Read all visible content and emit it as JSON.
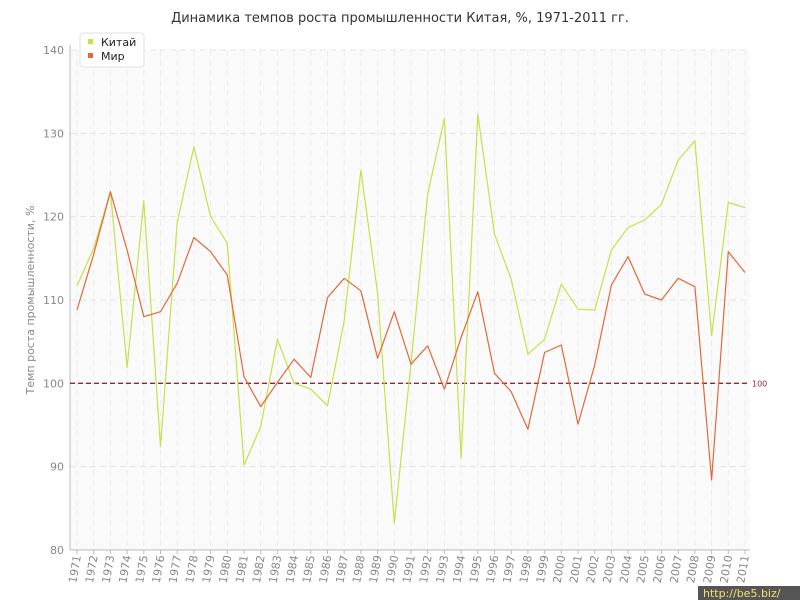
{
  "chart_data": {
    "type": "line",
    "title": "Динамика темпов роста промышленности Китая, %, 1971-2011 гг.",
    "xlabel": "",
    "ylabel": "Темп роста промышленности, %",
    "ylim": [
      80,
      140
    ],
    "yticks": [
      80,
      90,
      100,
      110,
      120,
      130,
      140
    ],
    "grid": true,
    "legend_position": "top-left",
    "x": [
      "1971",
      "1972",
      "1973",
      "1974",
      "1975",
      "1976",
      "1977",
      "1978",
      "1979",
      "1980",
      "1981",
      "1982",
      "1983",
      "1984",
      "1985",
      "1986",
      "1987",
      "1988",
      "1989",
      "1990",
      "1991",
      "1992",
      "1993",
      "1994",
      "1995",
      "1996",
      "1997",
      "1998",
      "1999",
      "2000",
      "2001",
      "2002",
      "2003",
      "2004",
      "2005",
      "2006",
      "2007",
      "2008",
      "2009",
      "2010",
      "2011"
    ],
    "series": [
      {
        "name": "Китай",
        "color": "#c8e04a",
        "values": [
          111.7,
          116.2,
          123.0,
          101.9,
          121.9,
          92.4,
          119.3,
          128.4,
          120.0,
          116.8,
          90.2,
          94.8,
          105.3,
          100.0,
          99.3,
          97.3,
          107.5,
          125.6,
          110.8,
          83.2,
          102.4,
          122.7,
          131.8,
          91.0,
          132.3,
          117.9,
          112.5,
          103.5,
          105.3,
          111.9,
          108.9,
          108.8,
          116.0,
          118.7,
          119.6,
          121.5,
          126.8,
          129.1,
          105.7,
          121.7,
          121.1
        ]
      },
      {
        "name": "Мир",
        "color": "#e06a3a",
        "values": [
          108.8,
          115.5,
          123.0,
          116.0,
          108.0,
          108.6,
          112.0,
          117.5,
          115.8,
          113.0,
          100.8,
          97.2,
          100.1,
          102.9,
          100.7,
          110.3,
          112.6,
          111.1,
          103.0,
          108.6,
          102.3,
          104.5,
          99.3,
          105.5,
          111.0,
          101.2,
          99.0,
          94.5,
          103.7,
          104.6,
          95.1,
          102.2,
          111.8,
          115.2,
          110.7,
          110.0,
          112.6,
          111.6,
          88.4,
          115.8,
          113.3
        ]
      }
    ],
    "reference_line": {
      "value": 100,
      "label": "100",
      "color": "#8b2a3a"
    }
  },
  "watermark": "http://be5.biz/"
}
